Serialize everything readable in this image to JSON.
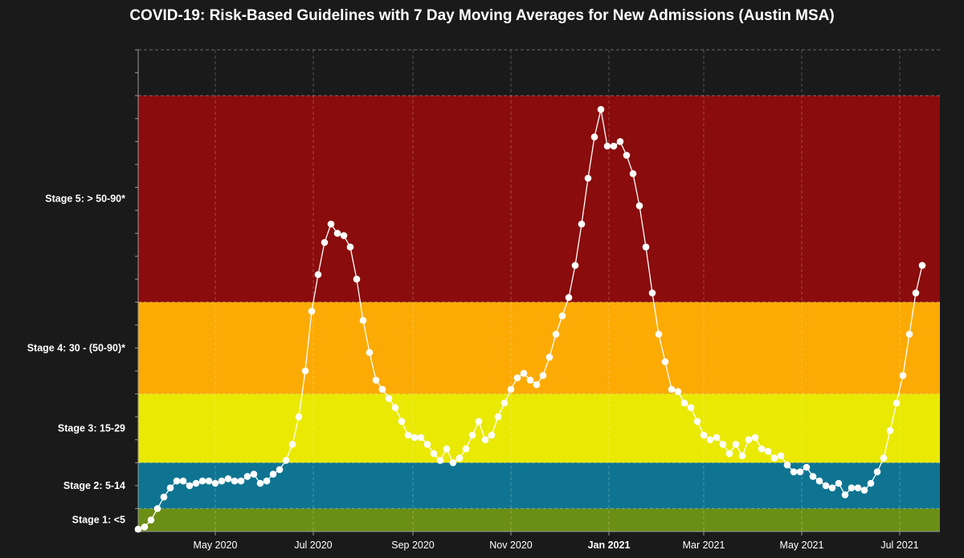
{
  "chart_data": {
    "type": "scatter",
    "title": "COVID-19: Risk-Based Guidelines with 7 Day Moving Averages for New Admissions (Austin MSA)",
    "xlabel": "",
    "ylabel": "",
    "x_range": [
      "2020-03-14",
      "2021-07-26"
    ],
    "y_range": [
      0,
      105
    ],
    "grid": true,
    "legend": "none",
    "series_color": "#ffffff",
    "bands": [
      {
        "label": "Stage 1: <5",
        "from": 0,
        "to": 5,
        "color": "#6b8e14"
      },
      {
        "label": "Stage 2: 5-14",
        "from": 5,
        "to": 15,
        "color": "#0e7491"
      },
      {
        "label": "Stage 3: 15-29",
        "from": 15,
        "to": 30,
        "color": "#e9e904"
      },
      {
        "label": "Stage 4: 30 - (50-90)*",
        "from": 30,
        "to": 50,
        "color": "#fcab04"
      },
      {
        "label": "Stage 5: > 50-90*",
        "from": 50,
        "to": 95,
        "color": "#8a0c0c"
      }
    ],
    "y_ticks": [
      {
        "label": "Stage 1: <5",
        "value": 2.5
      },
      {
        "label": "Stage 2: 5-14",
        "value": 10
      },
      {
        "label": "Stage 3: 15-29",
        "value": 22.5
      },
      {
        "label": "Stage 4: 30 - (50-90)*",
        "value": 40
      },
      {
        "label": "Stage 5: > 50-90*",
        "value": 72.5
      }
    ],
    "x_ticks": [
      {
        "label": "May 2020",
        "date": "2020-05-01",
        "bold": false
      },
      {
        "label": "Jul 2020",
        "date": "2020-07-01",
        "bold": false
      },
      {
        "label": "Sep 2020",
        "date": "2020-09-01",
        "bold": false
      },
      {
        "label": "Nov 2020",
        "date": "2020-11-01",
        "bold": false
      },
      {
        "label": "Jan 2021",
        "date": "2021-01-01",
        "bold": true
      },
      {
        "label": "Mar 2021",
        "date": "2021-03-01",
        "bold": false
      },
      {
        "label": "May 2021",
        "date": "2021-05-01",
        "bold": false
      },
      {
        "label": "Jul 2021",
        "date": "2021-07-01",
        "bold": false
      }
    ],
    "series": [
      {
        "points": [
          [
            "2020-03-14",
            0.5
          ],
          [
            "2020-03-18",
            1
          ],
          [
            "2020-03-22",
            2.5
          ],
          [
            "2020-03-26",
            5
          ],
          [
            "2020-03-30",
            7.5
          ],
          [
            "2020-04-03",
            9.5
          ],
          [
            "2020-04-07",
            11
          ],
          [
            "2020-04-11",
            11
          ],
          [
            "2020-04-15",
            10
          ],
          [
            "2020-04-19",
            10.5
          ],
          [
            "2020-04-23",
            11
          ],
          [
            "2020-04-27",
            11
          ],
          [
            "2020-05-01",
            10.5
          ],
          [
            "2020-05-05",
            11
          ],
          [
            "2020-05-09",
            11.5
          ],
          [
            "2020-05-13",
            11
          ],
          [
            "2020-05-17",
            11
          ],
          [
            "2020-05-21",
            12
          ],
          [
            "2020-05-25",
            12.5
          ],
          [
            "2020-05-29",
            10.5
          ],
          [
            "2020-06-02",
            11
          ],
          [
            "2020-06-06",
            12.5
          ],
          [
            "2020-06-10",
            13.5
          ],
          [
            "2020-06-14",
            15.5
          ],
          [
            "2020-06-18",
            19
          ],
          [
            "2020-06-22",
            25
          ],
          [
            "2020-06-26",
            35
          ],
          [
            "2020-06-30",
            48
          ],
          [
            "2020-07-04",
            56
          ],
          [
            "2020-07-08",
            63
          ],
          [
            "2020-07-12",
            67
          ],
          [
            "2020-07-16",
            65
          ],
          [
            "2020-07-20",
            64.5
          ],
          [
            "2020-07-24",
            62
          ],
          [
            "2020-07-28",
            55
          ],
          [
            "2020-08-01",
            46
          ],
          [
            "2020-08-05",
            39
          ],
          [
            "2020-08-09",
            33
          ],
          [
            "2020-08-13",
            31
          ],
          [
            "2020-08-17",
            29
          ],
          [
            "2020-08-21",
            27
          ],
          [
            "2020-08-25",
            24
          ],
          [
            "2020-08-29",
            21
          ],
          [
            "2020-09-02",
            20.5
          ],
          [
            "2020-09-06",
            20.5
          ],
          [
            "2020-09-10",
            19
          ],
          [
            "2020-09-14",
            17
          ],
          [
            "2020-09-18",
            15.5
          ],
          [
            "2020-09-22",
            18
          ],
          [
            "2020-09-26",
            15
          ],
          [
            "2020-09-30",
            16
          ],
          [
            "2020-10-04",
            18
          ],
          [
            "2020-10-08",
            21
          ],
          [
            "2020-10-12",
            24
          ],
          [
            "2020-10-16",
            20
          ],
          [
            "2020-10-20",
            21
          ],
          [
            "2020-10-24",
            25
          ],
          [
            "2020-10-28",
            28
          ],
          [
            "2020-11-01",
            31
          ],
          [
            "2020-11-05",
            33.5
          ],
          [
            "2020-11-09",
            34.5
          ],
          [
            "2020-11-13",
            33
          ],
          [
            "2020-11-17",
            32
          ],
          [
            "2020-11-21",
            34
          ],
          [
            "2020-11-25",
            38
          ],
          [
            "2020-11-29",
            43
          ],
          [
            "2020-12-03",
            47
          ],
          [
            "2020-12-07",
            51
          ],
          [
            "2020-12-11",
            58
          ],
          [
            "2020-12-15",
            67
          ],
          [
            "2020-12-19",
            77
          ],
          [
            "2020-12-23",
            86
          ],
          [
            "2020-12-27",
            92
          ],
          [
            "2020-12-31",
            84
          ],
          [
            "2021-01-04",
            84
          ],
          [
            "2021-01-08",
            85
          ],
          [
            "2021-01-12",
            82
          ],
          [
            "2021-01-16",
            78
          ],
          [
            "2021-01-20",
            71
          ],
          [
            "2021-01-24",
            62
          ],
          [
            "2021-01-28",
            52
          ],
          [
            "2021-02-01",
            43
          ],
          [
            "2021-02-05",
            37
          ],
          [
            "2021-02-09",
            31
          ],
          [
            "2021-02-13",
            30.5
          ],
          [
            "2021-02-17",
            28
          ],
          [
            "2021-02-21",
            27
          ],
          [
            "2021-02-25",
            24
          ],
          [
            "2021-03-01",
            21
          ],
          [
            "2021-03-05",
            20
          ],
          [
            "2021-03-09",
            20.5
          ],
          [
            "2021-03-13",
            19
          ],
          [
            "2021-03-17",
            17
          ],
          [
            "2021-03-21",
            19
          ],
          [
            "2021-03-25",
            16.5
          ],
          [
            "2021-03-29",
            20
          ],
          [
            "2021-04-02",
            20.5
          ],
          [
            "2021-04-06",
            18
          ],
          [
            "2021-04-10",
            17.5
          ],
          [
            "2021-04-14",
            16
          ],
          [
            "2021-04-18",
            16.5
          ],
          [
            "2021-04-22",
            14.5
          ],
          [
            "2021-04-26",
            13
          ],
          [
            "2021-04-30",
            13
          ],
          [
            "2021-05-04",
            14
          ],
          [
            "2021-05-08",
            12
          ],
          [
            "2021-05-12",
            11
          ],
          [
            "2021-05-16",
            10
          ],
          [
            "2021-05-20",
            9.5
          ],
          [
            "2021-05-24",
            10.5
          ],
          [
            "2021-05-28",
            8
          ],
          [
            "2021-06-01",
            9.5
          ],
          [
            "2021-06-05",
            9.5
          ],
          [
            "2021-06-09",
            9
          ],
          [
            "2021-06-13",
            10.5
          ],
          [
            "2021-06-17",
            13
          ],
          [
            "2021-06-21",
            16
          ],
          [
            "2021-06-25",
            22
          ],
          [
            "2021-06-29",
            28
          ],
          [
            "2021-07-03",
            34
          ],
          [
            "2021-07-07",
            43
          ],
          [
            "2021-07-11",
            52
          ],
          [
            "2021-07-15",
            58
          ]
        ]
      }
    ]
  }
}
